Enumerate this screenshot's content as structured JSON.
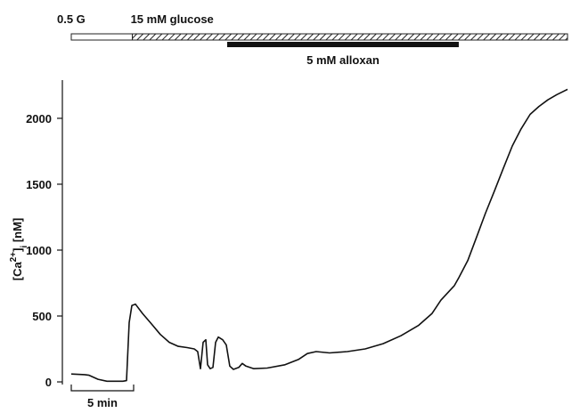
{
  "chart_data": {
    "type": "line",
    "y_label_parts": [
      "[Ca",
      "2+",
      "]",
      "i",
      " [nM]"
    ],
    "x": [
      0,
      1.07,
      1.43,
      2.14,
      2.86,
      4.14,
      4.43,
      4.64,
      4.86,
      5.14,
      5.71,
      6.43,
      7.14,
      7.86,
      8.57,
      9.29,
      9.86,
      10.14,
      10.36,
      10.57,
      10.79,
      10.93,
      11.14,
      11.36,
      11.57,
      11.79,
      12.14,
      12.43,
      12.71,
      13.0,
      13.43,
      13.71,
      14.0,
      14.64,
      15.71,
      17.14,
      18.21,
      18.93,
      19.64,
      20.71,
      22.14,
      23.57,
      25.0,
      26.43,
      27.86,
      28.93,
      29.64,
      30.71,
      31.07,
      31.79,
      32.5,
      33.21,
      33.93,
      34.64,
      35.36,
      36.07,
      36.79,
      37.5,
      38.21,
      38.93,
      39.79
    ],
    "series": [
      {
        "color": "#111111",
        "values": [
          60,
          55,
          50,
          20,
          5,
          5,
          10,
          450,
          580,
          590,
          520,
          440,
          360,
          300,
          270,
          260,
          250,
          230,
          100,
          300,
          320,
          130,
          100,
          110,
          300,
          340,
          320,
          280,
          120,
          95,
          110,
          140,
          120,
          100,
          105,
          130,
          170,
          215,
          230,
          220,
          230,
          250,
          290,
          350,
          430,
          520,
          620,
          730,
          790,
          920,
          1100,
          1280,
          1450,
          1620,
          1790,
          1920,
          2030,
          2090,
          2140,
          2180,
          2220
        ]
      }
    ],
    "xlim": [
      0,
      39.79
    ],
    "ylim": [
      -20,
      2290
    ],
    "yticks": [
      0,
      500,
      1000,
      1500,
      2000
    ],
    "periods": [
      {
        "label": "0.5 G",
        "start": 0,
        "end": 4.9
      },
      {
        "label": "15 mM glucose",
        "start": 4.9,
        "end": 39.79
      }
    ],
    "treatment": {
      "label": "5 mM alloxan",
      "start": 12.5,
      "end": 31.07
    },
    "scale_bar": {
      "label": "5 min",
      "length": 5
    }
  }
}
